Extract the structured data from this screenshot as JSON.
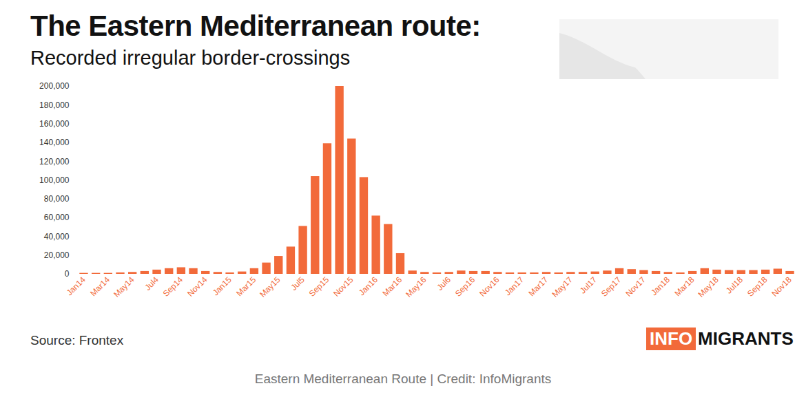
{
  "chart_data": {
    "type": "bar",
    "title": "The Eastern Mediterranean route:",
    "subtitle": "Recorded irregular border-crossings",
    "source": "Source: Frontex",
    "logo": [
      "INFO",
      "MIGRANTS"
    ],
    "caption": "Eastern Mediterranean Route | Credit: InfoMigrants",
    "color": "#f26a3a",
    "categories": [
      "Jan14",
      null,
      "Mar14",
      null,
      "May14",
      null,
      "Jul4",
      null,
      "Sep14",
      null,
      "Nov14",
      null,
      "Jan15",
      null,
      "Mar15",
      null,
      "May15",
      null,
      "Jul5",
      null,
      "Sep15",
      null,
      "Nov15",
      null,
      "Jan16",
      null,
      "Mar16",
      null,
      "May16",
      null,
      "Jul6",
      null,
      "Sep16",
      null,
      "Nov16",
      null,
      "Jan17",
      null,
      "Mar17",
      null,
      "May17",
      null,
      "Jul17",
      null,
      "Sep17",
      null,
      "Nov17",
      null,
      "Jan18",
      null,
      "Mar18",
      null,
      "May18",
      null,
      "Jul18",
      null,
      "Sep18",
      null,
      "Nov18"
    ],
    "values": [
      1000,
      1000,
      1000,
      1500,
      2000,
      3000,
      4500,
      6000,
      7000,
      6000,
      3000,
      2000,
      1500,
      2500,
      6000,
      12000,
      19000,
      29000,
      51000,
      104000,
      139000,
      200000,
      144000,
      103000,
      62000,
      53000,
      22000,
      3500,
      2000,
      1500,
      2000,
      3500,
      3000,
      3000,
      2000,
      1500,
      1500,
      1500,
      2000,
      1500,
      2000,
      2000,
      2500,
      3500,
      6000,
      5000,
      4000,
      3000,
      2000,
      1500,
      3000,
      6000,
      4500,
      4000,
      4000,
      4000,
      4500,
      5500,
      3000
    ],
    "ylim": [
      0,
      200000
    ],
    "yticks": [
      0,
      {
        "value": 20000,
        "label": "20,000"
      },
      {
        "value": 40000,
        "label": "40,000"
      },
      {
        "value": 60000,
        "label": "60,000"
      },
      {
        "value": 80000,
        "label": "80,000"
      },
      {
        "value": 100000,
        "label": "100,000"
      },
      {
        "value": 120000,
        "label": "120,000"
      },
      {
        "value": 140000,
        "label": "140,000"
      },
      {
        "value": 160000,
        "label": "160,000"
      },
      {
        "value": 180000,
        "label": "180,000"
      },
      {
        "value": 200000,
        "label": "200,000"
      }
    ],
    "grid": false
  }
}
